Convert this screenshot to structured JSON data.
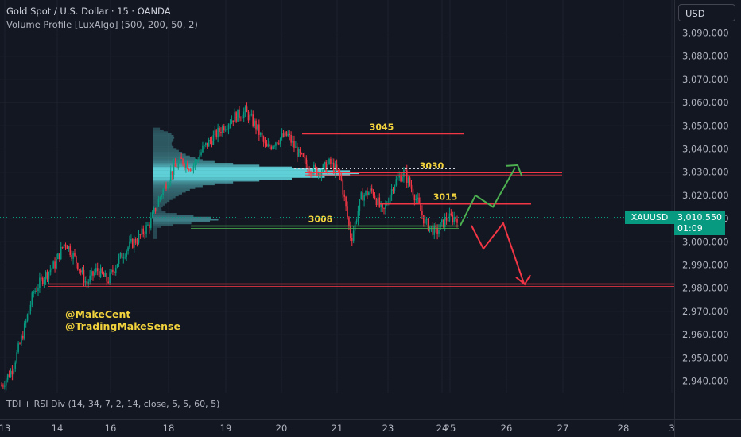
{
  "header": {
    "title": "Gold Spot / U.S. Dollar · 15 · OANDA",
    "indicator": "Volume Profile [LuxAlgo] (500, 200, 50, 2)",
    "currency": "USD"
  },
  "sub_indicator": "TDI + RSI Div (14, 34, 7, 2, 14, close, 5, 5, 60, 5)",
  "watermark": [
    "@MakeCent",
    "@TradingMakeSense"
  ],
  "price_badge": {
    "symbol": "XAUUSD",
    "price": "3,010.550",
    "countdown": "01:09"
  },
  "colors": {
    "background": "#131722",
    "grid": "#1e222d",
    "up": "#089981",
    "down": "#f23645",
    "level_line": "#f23645",
    "support_line": "#4caf50",
    "label_yellow": "#f2d33d",
    "volume_profile": "#5fd0d8",
    "arrow_up": "#4caf50",
    "arrow_down": "#f23645"
  },
  "chart_data": {
    "type": "candlestick",
    "y_axis": {
      "range": [
        2935,
        3096
      ],
      "ticks": [
        3090,
        3080,
        3070,
        3060,
        3050,
        3040,
        3030,
        3020,
        3010,
        3000,
        2990,
        2980,
        2970,
        2960,
        2950,
        2940
      ],
      "tick_labels": [
        "3,090.000",
        "3,080.000",
        "3,070.000",
        "3,060.000",
        "3,050.000",
        "3,040.000",
        "3,030.000",
        "3,020.000",
        "3,010.000",
        "3,000.000",
        "2,990.000",
        "2,980.000",
        "2,970.000",
        "2,960.000",
        "2,950.000",
        "2,940.000"
      ]
    },
    "x_axis": {
      "labels": [
        "13",
        "14",
        "16",
        "18",
        "19",
        "20",
        "21",
        "23",
        "24",
        "25",
        "26",
        "27",
        "28",
        "3"
      ]
    },
    "price_path": [
      2938,
      2945,
      2960,
      2978,
      2985,
      2990,
      3000,
      2992,
      2982,
      2988,
      2983,
      2992,
      2998,
      3002,
      3008,
      3020,
      3030,
      3035,
      3032,
      3040,
      3045,
      3050,
      3054,
      3056,
      3050,
      3040,
      3044,
      3046,
      3038,
      3032,
      3030,
      3034,
      3028,
      3001,
      3020,
      3022,
      3012,
      3025,
      3030,
      3020,
      3008,
      3004,
      3010,
      3010.55
    ],
    "levels": [
      {
        "label": "3045",
        "value": 3046.5
      },
      {
        "label": "3030",
        "value": 3029.8
      },
      {
        "label": "3015",
        "value": 3016.3
      },
      {
        "label": "3008",
        "value": 3006.8
      },
      {
        "label": "",
        "value": 2981.8
      }
    ],
    "current_price": 3010.55,
    "projection_up": [
      3007,
      3020,
      3015,
      3032
    ],
    "projection_down": [
      3007,
      2997,
      3008,
      2982
    ],
    "grid": true
  }
}
